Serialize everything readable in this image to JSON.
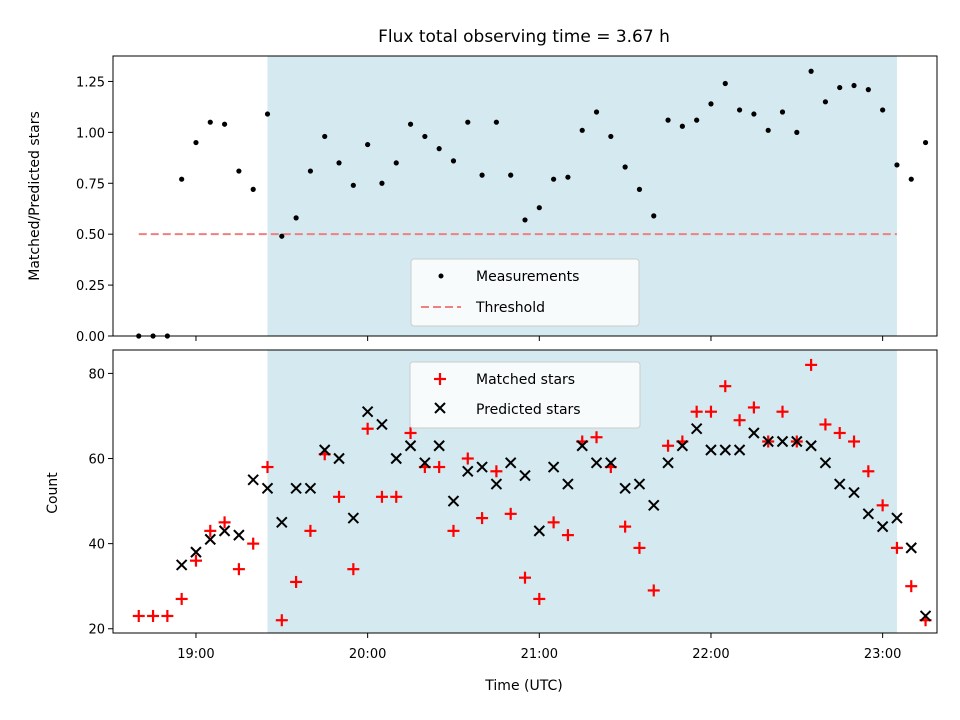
{
  "chart_data": [
    {
      "type": "scatter",
      "title": "Flux total observing time = 3.67 h",
      "xlabel": "",
      "ylabel": "Matched/Predicted stars",
      "ylim": [
        0,
        1.375
      ],
      "yticks": [
        "0.00",
        "0.25",
        "0.50",
        "0.75",
        "1.00",
        "1.25"
      ],
      "xlim": [
        "18:31",
        "23:19"
      ],
      "shaded_region": {
        "x": [
          "19:25",
          "23:05"
        ],
        "color": "#d4eaf0"
      },
      "legend": {
        "placement": "lower-center",
        "entries": [
          "Measurements",
          "Threshold"
        ]
      },
      "threshold": {
        "name": "Threshold",
        "value": 0.5,
        "x": [
          "18:40",
          "23:05"
        ],
        "color": "#f08080"
      },
      "series": [
        {
          "name": "Measurements",
          "color": "#000000",
          "marker": "dot",
          "points": [
            [
              "18:40",
              0.0
            ],
            [
              "18:45",
              0.0
            ],
            [
              "18:50",
              0.0
            ],
            [
              "18:55",
              0.77
            ],
            [
              "19:00",
              0.95
            ],
            [
              "19:05",
              1.05
            ],
            [
              "19:10",
              1.04
            ],
            [
              "19:15",
              0.81
            ],
            [
              "19:20",
              0.72
            ],
            [
              "19:25",
              1.09
            ],
            [
              "19:30",
              0.49
            ],
            [
              "19:35",
              0.58
            ],
            [
              "19:40",
              0.81
            ],
            [
              "19:45",
              0.98
            ],
            [
              "19:50",
              0.85
            ],
            [
              "19:55",
              0.74
            ],
            [
              "20:00",
              0.94
            ],
            [
              "20:05",
              0.75
            ],
            [
              "20:10",
              0.85
            ],
            [
              "20:15",
              1.04
            ],
            [
              "20:20",
              0.98
            ],
            [
              "20:25",
              0.92
            ],
            [
              "20:30",
              0.86
            ],
            [
              "20:35",
              1.05
            ],
            [
              "20:40",
              0.79
            ],
            [
              "20:45",
              1.05
            ],
            [
              "20:50",
              0.79
            ],
            [
              "20:55",
              0.57
            ],
            [
              "21:00",
              0.63
            ],
            [
              "21:05",
              0.77
            ],
            [
              "21:10",
              0.78
            ],
            [
              "21:15",
              1.01
            ],
            [
              "21:20",
              1.1
            ],
            [
              "21:25",
              0.98
            ],
            [
              "21:30",
              0.83
            ],
            [
              "21:35",
              0.72
            ],
            [
              "21:40",
              0.59
            ],
            [
              "21:45",
              1.06
            ],
            [
              "21:50",
              1.03
            ],
            [
              "21:55",
              1.06
            ],
            [
              "22:00",
              1.14
            ],
            [
              "22:05",
              1.24
            ],
            [
              "22:10",
              1.11
            ],
            [
              "22:15",
              1.09
            ],
            [
              "22:20",
              1.01
            ],
            [
              "22:25",
              1.1
            ],
            [
              "22:30",
              1.0
            ],
            [
              "22:35",
              1.3
            ],
            [
              "22:40",
              1.15
            ],
            [
              "22:45",
              1.22
            ],
            [
              "22:50",
              1.23
            ],
            [
              "22:55",
              1.21
            ],
            [
              "23:00",
              1.11
            ],
            [
              "23:05",
              0.84
            ],
            [
              "23:10",
              0.77
            ],
            [
              "23:15",
              0.95
            ]
          ]
        }
      ]
    },
    {
      "type": "scatter",
      "title": "",
      "xlabel": "Time (UTC)",
      "ylabel": "Count",
      "ylim": [
        19,
        85.5
      ],
      "yticks": [
        "20",
        "40",
        "60",
        "80"
      ],
      "xlim": [
        "18:31",
        "23:19"
      ],
      "xticks": [
        "19:00",
        "20:00",
        "21:00",
        "22:00",
        "23:00"
      ],
      "shaded_region": {
        "x": [
          "19:25",
          "23:05"
        ],
        "color": "#d4eaf0"
      },
      "legend": {
        "placement": "upper-center",
        "entries": [
          "Matched stars",
          "Predicted stars"
        ]
      },
      "series": [
        {
          "name": "Matched stars",
          "color": "#ff0000",
          "marker": "plus",
          "points": [
            [
              "18:40",
              23
            ],
            [
              "18:45",
              23
            ],
            [
              "18:50",
              23
            ],
            [
              "18:55",
              27
            ],
            [
              "19:00",
              36
            ],
            [
              "19:05",
              43
            ],
            [
              "19:10",
              45
            ],
            [
              "19:15",
              34
            ],
            [
              "19:20",
              40
            ],
            [
              "19:25",
              58
            ],
            [
              "19:30",
              22
            ],
            [
              "19:35",
              31
            ],
            [
              "19:40",
              43
            ],
            [
              "19:45",
              61
            ],
            [
              "19:50",
              51
            ],
            [
              "19:55",
              34
            ],
            [
              "20:00",
              67
            ],
            [
              "20:05",
              51
            ],
            [
              "20:10",
              51
            ],
            [
              "20:15",
              66
            ],
            [
              "20:20",
              58
            ],
            [
              "20:25",
              58
            ],
            [
              "20:30",
              43
            ],
            [
              "20:35",
              60
            ],
            [
              "20:40",
              46
            ],
            [
              "20:45",
              57
            ],
            [
              "20:50",
              47
            ],
            [
              "20:55",
              32
            ],
            [
              "21:00",
              27
            ],
            [
              "21:05",
              45
            ],
            [
              "21:10",
              42
            ],
            [
              "21:15",
              64
            ],
            [
              "21:20",
              65
            ],
            [
              "21:25",
              58
            ],
            [
              "21:30",
              44
            ],
            [
              "21:35",
              39
            ],
            [
              "21:40",
              29
            ],
            [
              "21:45",
              63
            ],
            [
              "21:50",
              64
            ],
            [
              "21:55",
              71
            ],
            [
              "22:00",
              71
            ],
            [
              "22:05",
              77
            ],
            [
              "22:10",
              69
            ],
            [
              "22:15",
              72
            ],
            [
              "22:20",
              64
            ],
            [
              "22:25",
              71
            ],
            [
              "22:30",
              64
            ],
            [
              "22:35",
              82
            ],
            [
              "22:40",
              68
            ],
            [
              "22:45",
              66
            ],
            [
              "22:50",
              64
            ],
            [
              "22:55",
              57
            ],
            [
              "23:00",
              49
            ],
            [
              "23:05",
              39
            ],
            [
              "23:10",
              30
            ],
            [
              "23:15",
              22
            ]
          ]
        },
        {
          "name": "Predicted stars",
          "color": "#000000",
          "marker": "x",
          "points": [
            [
              "18:55",
              35
            ],
            [
              "19:00",
              38
            ],
            [
              "19:05",
              41
            ],
            [
              "19:10",
              43
            ],
            [
              "19:15",
              42
            ],
            [
              "19:20",
              55
            ],
            [
              "19:25",
              53
            ],
            [
              "19:30",
              45
            ],
            [
              "19:35",
              53
            ],
            [
              "19:40",
              53
            ],
            [
              "19:45",
              62
            ],
            [
              "19:50",
              60
            ],
            [
              "19:55",
              46
            ],
            [
              "20:00",
              71
            ],
            [
              "20:05",
              68
            ],
            [
              "20:10",
              60
            ],
            [
              "20:15",
              63
            ],
            [
              "20:20",
              59
            ],
            [
              "20:25",
              63
            ],
            [
              "20:30",
              50
            ],
            [
              "20:35",
              57
            ],
            [
              "20:40",
              58
            ],
            [
              "20:45",
              54
            ],
            [
              "20:50",
              59
            ],
            [
              "20:55",
              56
            ],
            [
              "21:00",
              43
            ],
            [
              "21:05",
              58
            ],
            [
              "21:10",
              54
            ],
            [
              "21:15",
              63
            ],
            [
              "21:20",
              59
            ],
            [
              "21:25",
              59
            ],
            [
              "21:30",
              53
            ],
            [
              "21:35",
              54
            ],
            [
              "21:40",
              49
            ],
            [
              "21:45",
              59
            ],
            [
              "21:50",
              63
            ],
            [
              "21:55",
              67
            ],
            [
              "22:00",
              62
            ],
            [
              "22:05",
              62
            ],
            [
              "22:10",
              62
            ],
            [
              "22:15",
              66
            ],
            [
              "22:20",
              64
            ],
            [
              "22:25",
              64
            ],
            [
              "22:30",
              64
            ],
            [
              "22:35",
              63
            ],
            [
              "22:40",
              59
            ],
            [
              "22:45",
              54
            ],
            [
              "22:50",
              52
            ],
            [
              "22:55",
              47
            ],
            [
              "23:00",
              44
            ],
            [
              "23:05",
              46
            ],
            [
              "23:10",
              39
            ],
            [
              "23:15",
              23
            ]
          ]
        }
      ]
    }
  ]
}
